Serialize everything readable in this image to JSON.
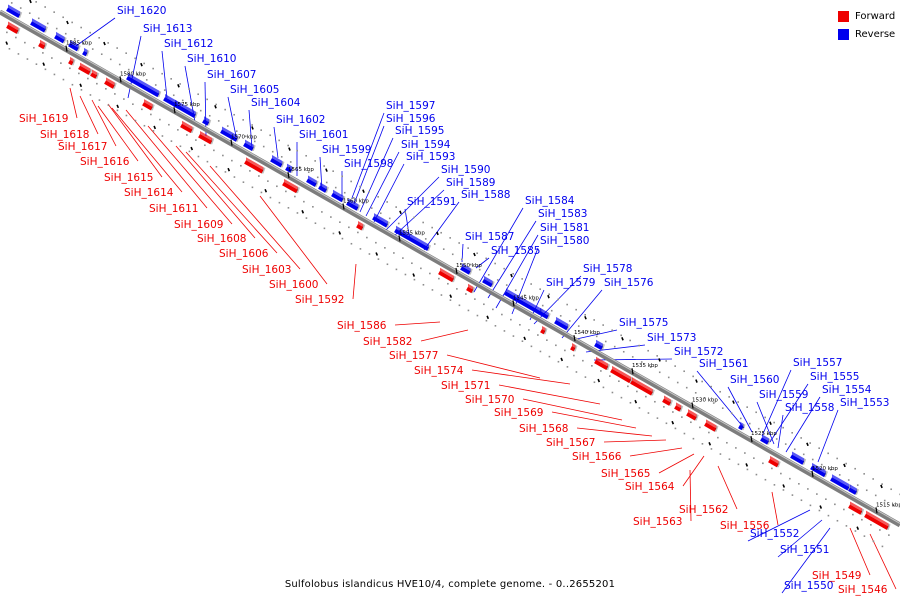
{
  "colors": {
    "forward": "#ee0000",
    "reverse": "#0000ee",
    "axis": "#7d7d7d"
  },
  "legend": [
    {
      "label": "Forward",
      "color": "#ee0000"
    },
    {
      "label": "Reverse",
      "color": "#0000ee"
    }
  ],
  "caption": "Sulfolobus islandicus HVE10/4, complete genome. - 0..2655201",
  "axis_ticks": [
    "1585 kbp",
    "1580 kbp",
    "1575 kbp",
    "1570 kbp",
    "1565 kbp",
    "1560 kbp",
    "1555 kbp",
    "1550 kbp",
    "1545 kbp",
    "1540 kbp",
    "1535 kbp",
    "1530 kbp",
    "1525 kbp",
    "1520 kbp",
    "1515 kbp"
  ],
  "genes": {
    "reverse": [
      "SiH_1620",
      "SiH_1613",
      "SiH_1612",
      "SiH_1610",
      "SiH_1607",
      "SiH_1605",
      "SiH_1604",
      "SiH_1602",
      "SiH_1601",
      "SiH_1599",
      "SiH_1598",
      "SiH_1597",
      "SiH_1596",
      "SiH_1595",
      "SiH_1594",
      "SiH_1593",
      "SiH_1590",
      "SiH_1589",
      "SiH_1591",
      "SiH_1588",
      "SiH_1584",
      "SiH_1583",
      "SiH_1581",
      "SiH_1587",
      "SiH_1580",
      "SiH_1585",
      "SiH_1578",
      "SiH_1579",
      "SiH_1576",
      "SiH_1575",
      "SiH_1573",
      "SiH_1572",
      "SiH_1561",
      "SiH_1557",
      "SiH_1560",
      "SiH_1555",
      "SiH_1559",
      "SiH_1554",
      "SiH_1558",
      "SiH_1553",
      "SiH_1552",
      "SiH_1551",
      "SiH_1550"
    ],
    "forward": [
      "SiH_1619",
      "SiH_1618",
      "SiH_1617",
      "SiH_1616",
      "SiH_1615",
      "SiH_1614",
      "SiH_1611",
      "SiH_1609",
      "SiH_1608",
      "SiH_1606",
      "SiH_1603",
      "SiH_1600",
      "SiH_1592",
      "SiH_1586",
      "SiH_1582",
      "SiH_1577",
      "SiH_1574",
      "SiH_1571",
      "SiH_1570",
      "SiH_1569",
      "SiH_1568",
      "SiH_1567",
      "SiH_1566",
      "SiH_1565",
      "SiH_1564",
      "SiH_1563",
      "SiH_1562",
      "SiH_1556",
      "SiH_1549",
      "SiH_1546"
    ]
  }
}
